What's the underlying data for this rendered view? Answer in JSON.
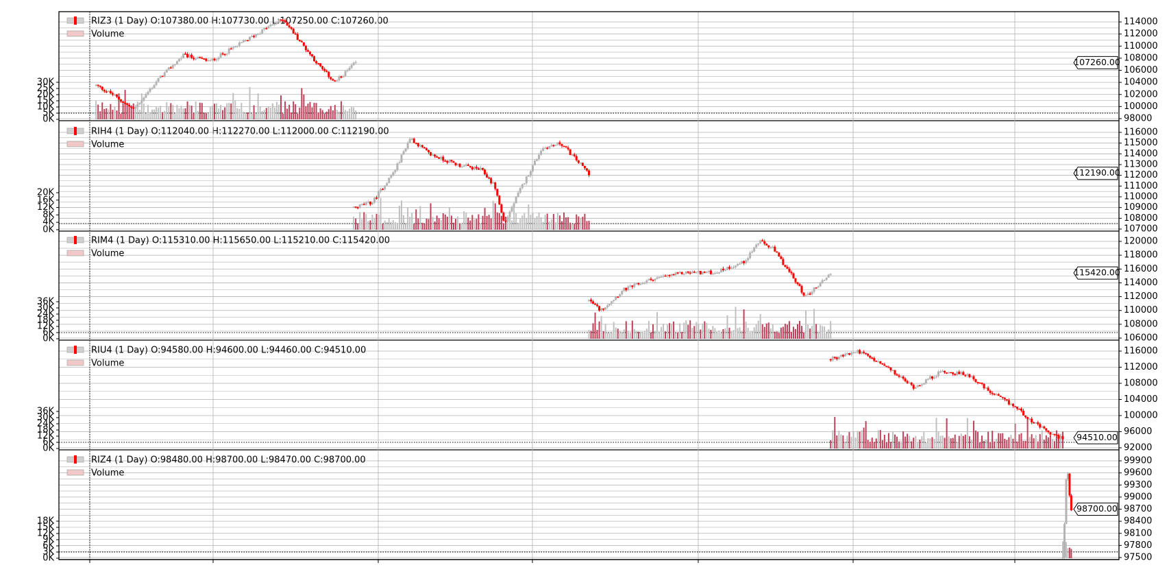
{
  "chart_data": {
    "type": "candlestick",
    "colors": {
      "up": "#b3b3b3",
      "down": "#ff0000",
      "volume_up": "#c0c0c0",
      "volume_down": "#c0405a",
      "grid": "#b0b0b0",
      "price_tag_border": "#000000"
    },
    "legend_labels": {
      "volume": "Volume"
    },
    "panels": [
      {
        "symbol": "RIZ3",
        "header": "RIZ3 (1 Day) O:107380.00 H:107730.00 L:107250.00 C:107260.00",
        "last_price_label": "107260.00",
        "last_price": 107260,
        "y_range": [
          98000,
          114000
        ],
        "y_ticks": [
          "98000",
          "100000",
          "102000",
          "104000",
          "106000",
          "108000",
          "110000",
          "112000",
          "114000"
        ],
        "vol_ticks": [
          "0K",
          "5K",
          "10K",
          "15K",
          "20K",
          "25K",
          "30K"
        ],
        "vol_max": 30000,
        "bar_range": [
          0.035,
          0.28
        ],
        "anchors": [
          [
            0,
            103500
          ],
          [
            0.08,
            102000
          ],
          [
            0.18,
            99500
          ],
          [
            0.3,
            104500
          ],
          [
            0.42,
            108500
          ],
          [
            0.55,
            107500
          ],
          [
            0.7,
            110500
          ],
          [
            0.82,
            113000
          ],
          [
            0.9,
            114500
          ],
          [
            1.0,
            110000
          ],
          [
            1.08,
            106500
          ],
          [
            1.15,
            104000
          ],
          [
            1.25,
            107260
          ]
        ]
      },
      {
        "symbol": "RIH4",
        "header": "RIH4 (1 Day) O:112040.00 H:112270.00 L:112000.00 C:112190.00",
        "last_price_label": "112190.00",
        "last_price": 112190,
        "y_range": [
          107000,
          116000
        ],
        "y_ticks": [
          "107000",
          "108000",
          "109000",
          "110000",
          "111000",
          "112000",
          "113000",
          "114000",
          "115000",
          "116000"
        ],
        "vol_ticks": [
          "0K",
          "4K",
          "8K",
          "12K",
          "16K",
          "20K"
        ],
        "vol_max": 20000,
        "bar_range": [
          0.278,
          0.5
        ],
        "anchors": [
          [
            0,
            109000
          ],
          [
            0.1,
            109500
          ],
          [
            0.22,
            112500
          ],
          [
            0.3,
            115500
          ],
          [
            0.4,
            114000
          ],
          [
            0.55,
            113000
          ],
          [
            0.68,
            112500
          ],
          [
            0.75,
            111000
          ],
          [
            0.8,
            107500
          ],
          [
            0.88,
            110500
          ],
          [
            1.0,
            114500
          ],
          [
            1.1,
            115000
          ],
          [
            1.25,
            112190
          ]
        ]
      },
      {
        "symbol": "RIM4",
        "header": "RIM4 (1 Day) O:115310.00 H:115650.00 L:115210.00 C:115420.00",
        "last_price_label": "115420.00",
        "last_price": 115420,
        "y_range": [
          106000,
          120000
        ],
        "y_ticks": [
          "106000",
          "108000",
          "110000",
          "112000",
          "114000",
          "116000",
          "118000",
          "120000"
        ],
        "vol_ticks": [
          "0K",
          "6K",
          "12K",
          "18K",
          "24K",
          "30K",
          "36K"
        ],
        "vol_max": 36000,
        "bar_range": [
          0.5,
          0.728
        ],
        "anchors": [
          [
            0,
            111500
          ],
          [
            0.06,
            110000
          ],
          [
            0.18,
            113000
          ],
          [
            0.32,
            114500
          ],
          [
            0.5,
            115500
          ],
          [
            0.65,
            115500
          ],
          [
            0.8,
            117000
          ],
          [
            0.88,
            120000
          ],
          [
            0.95,
            119000
          ],
          [
            1.05,
            115000
          ],
          [
            1.12,
            112000
          ],
          [
            1.18,
            113500
          ],
          [
            1.25,
            115420
          ]
        ]
      },
      {
        "symbol": "RIU4",
        "header": "RIU4 (1 Day) O:94580.00 H:94600.00 L:94460.00 C:94510.00",
        "last_price_label": "94510.00",
        "last_price": 94510,
        "y_range": [
          92000,
          116000
        ],
        "y_ticks": [
          "92000",
          "96000",
          "100000",
          "104000",
          "108000",
          "112000",
          "116000"
        ],
        "vol_ticks": [
          "0K",
          "6K",
          "12K",
          "18K",
          "24K",
          "30K",
          "36K"
        ],
        "vol_max": 36000,
        "bar_range": [
          0.728,
          0.947
        ],
        "anchors": [
          [
            0,
            114000
          ],
          [
            0.15,
            116000
          ],
          [
            0.3,
            112000
          ],
          [
            0.45,
            107000
          ],
          [
            0.6,
            111000
          ],
          [
            0.75,
            110000
          ],
          [
            0.85,
            106000
          ],
          [
            1.0,
            102000
          ],
          [
            1.1,
            98000
          ],
          [
            1.2,
            95000
          ],
          [
            1.25,
            94510
          ]
        ]
      },
      {
        "symbol": "RIZ4",
        "header": "RIZ4 (1 Day) O:98480.00 H:98700.00 L:98470.00 C:98700.00",
        "last_price_label": "98700.00",
        "last_price": 98700,
        "y_range": [
          97500,
          99900
        ],
        "y_ticks": [
          "97500",
          "97800",
          "98100",
          "98400",
          "98700",
          "99000",
          "99300",
          "99600",
          "99900"
        ],
        "vol_ticks": [
          "0K",
          "3K",
          "6K",
          "9K",
          "12K",
          "15K",
          "18K"
        ],
        "vol_max": 18000,
        "bar_range": [
          0.947,
          0.955
        ],
        "anchors": [
          [
            0,
            97500
          ],
          [
            0.3,
            98500
          ],
          [
            0.6,
            99900
          ],
          [
            1.0,
            99000
          ],
          [
            1.25,
            98700
          ]
        ]
      }
    ]
  }
}
